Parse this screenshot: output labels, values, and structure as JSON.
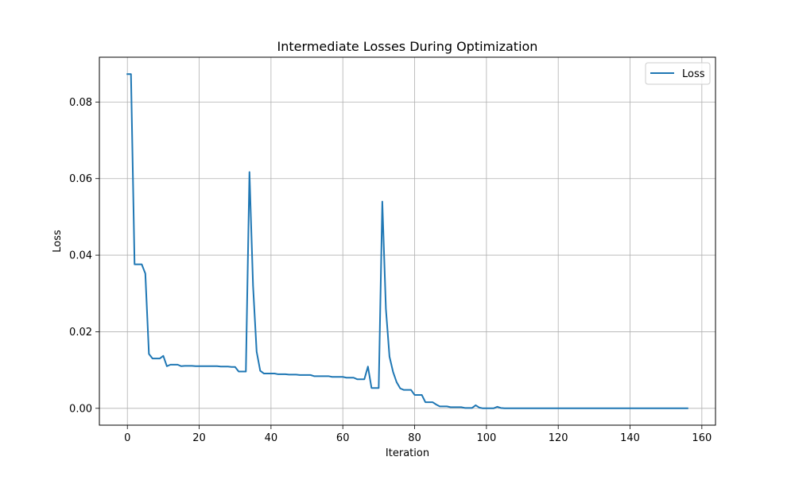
{
  "chart_data": {
    "type": "line",
    "title": "Intermediate Losses During Optimization",
    "xlabel": "Iteration",
    "ylabel": "Loss",
    "xlim": [
      -7.8,
      163.8
    ],
    "ylim": [
      -0.0044,
      0.0917
    ],
    "xticks": [
      0,
      20,
      40,
      60,
      80,
      100,
      120,
      140,
      160
    ],
    "xtick_labels": [
      "0",
      "20",
      "40",
      "60",
      "80",
      "100",
      "120",
      "140",
      "160"
    ],
    "yticks": [
      0.0,
      0.02,
      0.04,
      0.06,
      0.08
    ],
    "ytick_labels": [
      "0.00",
      "0.02",
      "0.04",
      "0.06",
      "0.08"
    ],
    "grid": true,
    "legend_position": "upper right",
    "series": [
      {
        "name": "Loss",
        "color": "#1f77b4",
        "x": [
          0,
          1,
          2,
          3,
          4,
          5,
          6,
          7,
          8,
          9,
          10,
          11,
          12,
          13,
          14,
          15,
          16,
          17,
          18,
          19,
          20,
          21,
          22,
          23,
          24,
          25,
          26,
          27,
          28,
          29,
          30,
          31,
          32,
          33,
          34,
          35,
          36,
          37,
          38,
          39,
          40,
          41,
          42,
          43,
          44,
          45,
          46,
          47,
          48,
          49,
          50,
          51,
          52,
          53,
          54,
          55,
          56,
          57,
          58,
          59,
          60,
          61,
          62,
          63,
          64,
          65,
          66,
          67,
          68,
          69,
          70,
          71,
          72,
          73,
          74,
          75,
          76,
          77,
          78,
          79,
          80,
          81,
          82,
          83,
          84,
          85,
          86,
          87,
          88,
          89,
          90,
          91,
          92,
          93,
          94,
          95,
          96,
          97,
          98,
          99,
          100,
          101,
          102,
          103,
          104,
          105,
          106,
          107,
          108,
          109,
          110,
          111,
          112,
          113,
          114,
          115,
          116,
          117,
          118,
          119,
          120,
          121,
          122,
          123,
          124,
          125,
          126,
          127,
          128,
          129,
          130,
          131,
          132,
          133,
          134,
          135,
          136,
          137,
          138,
          139,
          140,
          141,
          142,
          143,
          144,
          145,
          146,
          147,
          148,
          149,
          150,
          151,
          152,
          153,
          154,
          155,
          156
        ],
        "y": [
          0.0873,
          0.0873,
          0.0376,
          0.0376,
          0.0376,
          0.0352,
          0.0142,
          0.013,
          0.013,
          0.013,
          0.0137,
          0.011,
          0.0114,
          0.0114,
          0.0114,
          0.011,
          0.0111,
          0.0111,
          0.0111,
          0.011,
          0.011,
          0.011,
          0.011,
          0.011,
          0.011,
          0.011,
          0.0109,
          0.0109,
          0.0109,
          0.0108,
          0.0108,
          0.0096,
          0.0096,
          0.0096,
          0.0617,
          0.032,
          0.0148,
          0.0098,
          0.0091,
          0.0091,
          0.0091,
          0.0091,
          0.0089,
          0.0089,
          0.0089,
          0.0088,
          0.0088,
          0.0088,
          0.0087,
          0.0087,
          0.0087,
          0.0087,
          0.0084,
          0.0084,
          0.0084,
          0.0084,
          0.0084,
          0.0082,
          0.0082,
          0.0082,
          0.0082,
          0.008,
          0.008,
          0.008,
          0.0076,
          0.0076,
          0.0076,
          0.0109,
          0.0053,
          0.0053,
          0.0053,
          0.054,
          0.026,
          0.0135,
          0.0095,
          0.0068,
          0.0052,
          0.0048,
          0.0048,
          0.0048,
          0.0035,
          0.0035,
          0.0035,
          0.0016,
          0.0016,
          0.0016,
          0.001,
          0.0005,
          0.0005,
          0.0005,
          0.0003,
          0.0003,
          0.0003,
          0.0003,
          0.0001,
          0.0001,
          0.0001,
          0.0008,
          0.0002,
          0.0,
          0.0,
          0.0,
          0.0,
          0.0004,
          0.0001,
          0.0,
          0.0,
          0.0,
          0.0,
          0.0,
          0.0,
          0.0,
          0.0,
          0.0,
          0.0,
          0.0,
          0.0,
          0.0,
          0.0,
          0.0,
          0.0,
          0.0,
          0.0,
          0.0,
          0.0,
          0.0,
          0.0,
          0.0,
          0.0,
          0.0,
          0.0,
          0.0,
          0.0,
          0.0,
          0.0,
          0.0,
          0.0,
          0.0,
          0.0,
          0.0,
          0.0,
          0.0,
          0.0,
          0.0,
          0.0,
          0.0,
          0.0,
          0.0,
          0.0,
          0.0,
          0.0,
          0.0,
          0.0,
          0.0,
          0.0,
          0.0,
          0.0
        ]
      }
    ]
  }
}
